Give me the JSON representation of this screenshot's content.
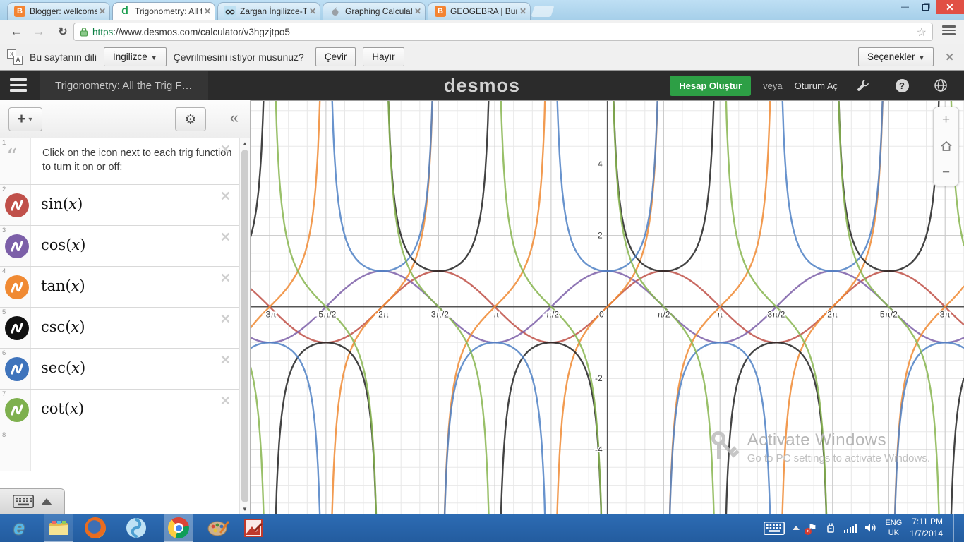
{
  "browser": {
    "tabs": [
      {
        "title": "Blogger: wellcome to my",
        "favicon": "blogger-icon",
        "active": false
      },
      {
        "title": "Trigonometry: All the Trig",
        "favicon": "desmos-icon",
        "active": true
      },
      {
        "title": "Zargan İngilizce-Türkçe Sö",
        "favicon": "zargan-icon",
        "active": false
      },
      {
        "title": "Graphing Calculator by De",
        "favicon": "apple-icon",
        "active": false
      },
      {
        "title": "GEOGEBRA | Burcu Albay",
        "favicon": "blogger-icon",
        "active": false
      }
    ],
    "url_scheme": "https",
    "url_rest": "://www.desmos.com/calculator/v3hgzjtpo5"
  },
  "translate_bar": {
    "message_prefix": "Bu sayfanın dili",
    "language": "İngilizce",
    "question": "Çevrilmesini istiyor musunuz?",
    "translate_button": "Çevir",
    "no_button": "Hayır",
    "options_button": "Seçenekler"
  },
  "desmos_header": {
    "title": "Trigonometry: All the Trig F…",
    "logo": "desmos",
    "create_account": "Hesap Oluştur",
    "or_text": "veya",
    "sign_in": "Oturum Aç"
  },
  "expressions": {
    "note_index": "1",
    "note": "Click on the icon next to each trig function to turn it on or off:",
    "empty_row_index": "8",
    "items": [
      {
        "index": "2",
        "fn": "sin",
        "open": "(",
        "arg": "x",
        "close": ")",
        "color": "#c0504a"
      },
      {
        "index": "3",
        "fn": "cos",
        "open": "(",
        "arg": "x",
        "close": ")",
        "color": "#7c5fa8"
      },
      {
        "index": "4",
        "fn": "tan",
        "open": "(",
        "arg": "x",
        "close": ")",
        "color": "#f08a33"
      },
      {
        "index": "5",
        "fn": "csc",
        "open": "(",
        "arg": "x",
        "close": ")",
        "color": "#111111"
      },
      {
        "index": "6",
        "fn": "sec",
        "open": "(",
        "arg": "x",
        "close": ")",
        "color": "#3f74bc"
      },
      {
        "index": "7",
        "fn": "cot",
        "open": "(",
        "arg": "x",
        "close": ")",
        "color": "#7eb04e"
      }
    ]
  },
  "chart_data": {
    "type": "line",
    "title": "",
    "xlabel": "",
    "ylabel": "",
    "x_axis": {
      "min_pi": -3.17,
      "max_pi": 3.168,
      "minor_step_pi": 0.1666667,
      "major_step_pi": 0.5,
      "ticks": [
        {
          "pi": -3,
          "label": "-3π"
        },
        {
          "pi": -2.5,
          "label": "-5π/2"
        },
        {
          "pi": -2,
          "label": "-2π"
        },
        {
          "pi": -1.5,
          "label": "-3π/2"
        },
        {
          "pi": -1,
          "label": "-π"
        },
        {
          "pi": -0.5,
          "label": "-π/2"
        },
        {
          "pi": 0,
          "label": "0"
        },
        {
          "pi": 0.5,
          "label": "π/2"
        },
        {
          "pi": 1,
          "label": "π"
        },
        {
          "pi": 1.5,
          "label": "3π/2"
        },
        {
          "pi": 2,
          "label": "2π"
        },
        {
          "pi": 2.5,
          "label": "5π/2"
        },
        {
          "pi": 3,
          "label": "3π"
        }
      ]
    },
    "y_axis": {
      "min": -5.8,
      "max": 5.79,
      "minor_step": 0.5,
      "major_step": 2,
      "ticks": [
        {
          "v": -4,
          "label": "-4"
        },
        {
          "v": -2,
          "label": "-2"
        },
        {
          "v": 2,
          "label": "2"
        },
        {
          "v": 4,
          "label": "4"
        }
      ]
    },
    "grid": true,
    "legend": false,
    "grid_colors": {
      "minor": "#e8e8e8",
      "major": "#c9c9c9",
      "axis": "#555555"
    },
    "series": [
      {
        "name": "sin(x)",
        "fn": "sin",
        "color": "#c05046"
      },
      {
        "name": "cos(x)",
        "fn": "cos",
        "color": "#7c5fa8"
      },
      {
        "name": "tan(x)",
        "fn": "tan",
        "color": "#f08a33"
      },
      {
        "name": "csc(x)",
        "fn": "csc",
        "color": "#222222"
      },
      {
        "name": "sec(x)",
        "fn": "sec",
        "color": "#4d80c4"
      },
      {
        "name": "cot(x)",
        "fn": "cot",
        "color": "#87b54f"
      }
    ]
  },
  "watermark": {
    "line1": "Activate Windows",
    "line2": "Go to PC settings to activate Windows."
  },
  "taskbar": {
    "apps": [
      "internet-explorer",
      "file-explorer",
      "firefox",
      "media-app",
      "chrome",
      "paint",
      "picture-manager"
    ],
    "tray": {
      "language_line1": "ENG",
      "language_line2": "UK",
      "time": "7:11 PM",
      "date": "1/7/2014"
    }
  }
}
